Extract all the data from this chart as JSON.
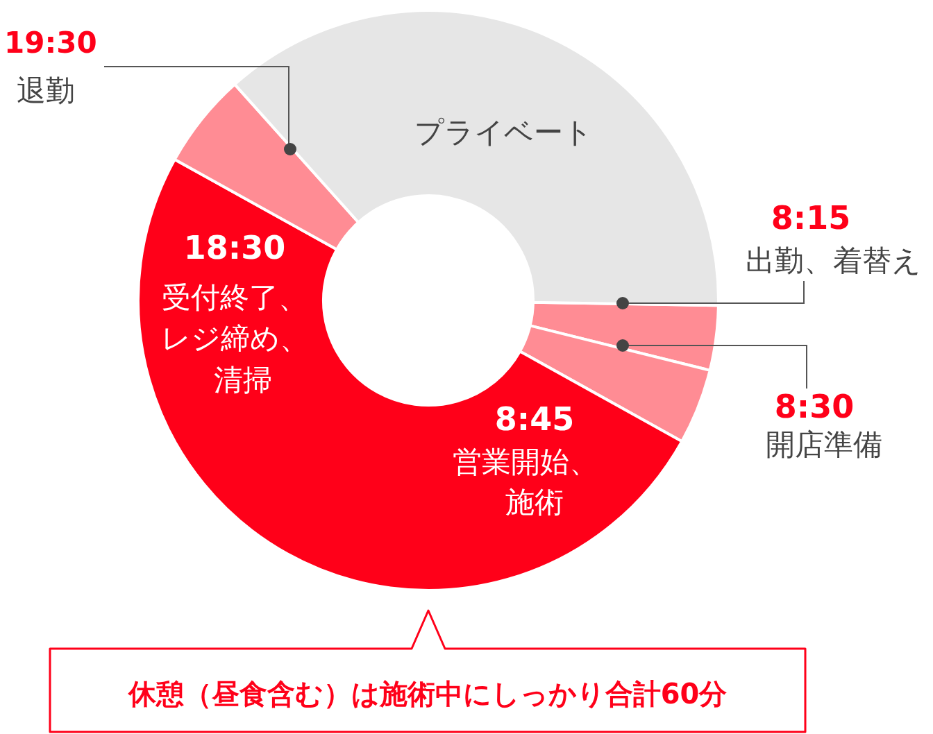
{
  "chart_data": {
    "type": "donut",
    "categories": [
      "出勤、着替え",
      "開店準備",
      "営業開始、施術",
      null,
      "プライベート"
    ],
    "values": [
      3.6,
      4.2,
      50,
      5.3,
      36.9
    ],
    "colors": [
      "#ff8c94",
      "#ff8c94",
      "#ff0019",
      "#ff8c94",
      "#e6e6e6"
    ],
    "annotations": [
      "8:15",
      "8:30",
      "8:45",
      "18:30",
      "19:30",
      "退勤",
      "休憩（昼食含む）は施術中にしっかり合計60分",
      "受付終了、レジ締め、清掃"
    ]
  }
}
